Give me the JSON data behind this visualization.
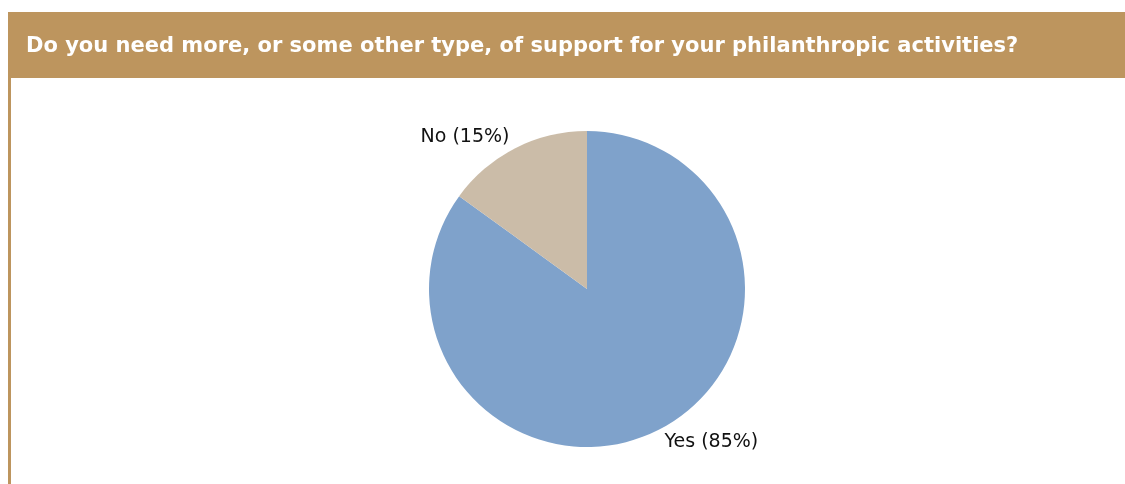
{
  "chart_data": {
    "type": "pie",
    "title": "Do you need more, or some other type, of support for your philanthropic activities?",
    "categories": [
      "Yes (85%)",
      "No (15%)"
    ],
    "values": [
      85,
      15
    ],
    "colors": [
      "#7fa2cb",
      "#cbbca8"
    ]
  }
}
